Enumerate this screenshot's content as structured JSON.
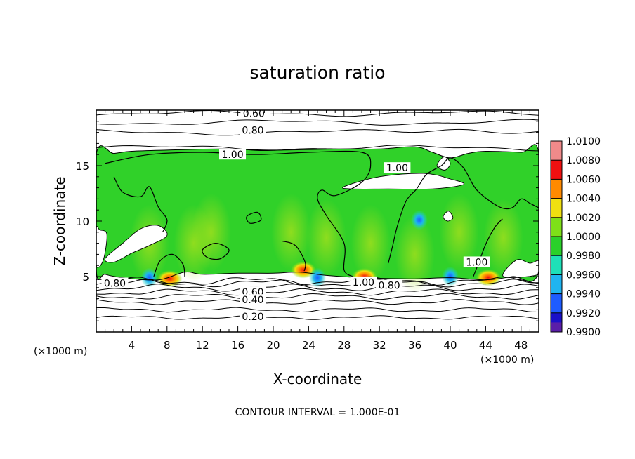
{
  "chart_data": {
    "type": "heatmap",
    "title": "saturation ratio",
    "xlabel": "X-coordinate",
    "ylabel": "Z-coordinate",
    "x_unit_left": "(×1000 m)",
    "x_unit_right": "(×1000 m)",
    "xlim": [
      0,
      50
    ],
    "ylim": [
      0,
      20
    ],
    "x_ticks": [
      4,
      8,
      12,
      16,
      20,
      24,
      28,
      32,
      36,
      40,
      44,
      48
    ],
    "y_ticks": [
      5,
      10,
      15
    ],
    "footer": "CONTOUR INTERVAL = 1.000E-01",
    "colorbar": {
      "levels": [
        "0.9900",
        "0.9920",
        "0.9940",
        "0.9960",
        "0.9980",
        "1.0000",
        "1.0020",
        "1.0040",
        "1.0060",
        "1.0080",
        "1.0100"
      ],
      "colors": [
        "#5a1ea8",
        "#1a10c8",
        "#1e5cff",
        "#1fb4f0",
        "#1ee0b8",
        "#2ad02a",
        "#7ee018",
        "#f0e010",
        "#ff8a00",
        "#f01010",
        "#f08a8a"
      ]
    },
    "contour_labels": [
      {
        "text": "0.60",
        "x": 17.8,
        "y": 19.7
      },
      {
        "text": "0.80",
        "x": 17.7,
        "y": 18.2
      },
      {
        "text": "1.00",
        "x": 15.4,
        "y": 16.0
      },
      {
        "text": "1.00",
        "x": 34.0,
        "y": 14.8
      },
      {
        "text": "1.00",
        "x": 43.0,
        "y": 6.3
      },
      {
        "text": "0.80",
        "x": 2.1,
        "y": 4.4
      },
      {
        "text": "0.60",
        "x": 17.7,
        "y": 3.6
      },
      {
        "text": "0.40",
        "x": 17.7,
        "y": 2.9
      },
      {
        "text": "0.20",
        "x": 17.7,
        "y": 1.4
      },
      {
        "text": "1.00",
        "x": 30.2,
        "y": 4.5
      },
      {
        "text": "0.80",
        "x": 33.1,
        "y": 4.2
      }
    ],
    "stable_contours": [
      {
        "level": 0.2,
        "y": 1.3
      },
      {
        "level": 0.3,
        "y": 2.0
      },
      {
        "level": 0.4,
        "y": 2.7
      },
      {
        "level": 0.5,
        "y": 3.2
      },
      {
        "level": 0.6,
        "y": 3.6
      },
      {
        "level": 0.7,
        "y": 4.0
      },
      {
        "level": 0.8,
        "y": 4.4
      },
      {
        "level": 0.9,
        "y": 4.6
      }
    ],
    "upper_contours": [
      {
        "level": 0.9,
        "y": 16.6
      },
      {
        "level": 0.8,
        "y": 18.0
      },
      {
        "level": 0.7,
        "y": 18.9
      },
      {
        "level": 0.6,
        "y": 19.7
      }
    ],
    "cloud_top_boundary": [
      [
        0,
        16.0
      ],
      [
        2,
        16.1
      ],
      [
        4,
        16.3
      ],
      [
        8,
        16.4
      ],
      [
        14,
        16.5
      ],
      [
        20,
        16.4
      ],
      [
        28,
        16.5
      ],
      [
        32,
        16.5
      ],
      [
        36,
        16.7
      ],
      [
        38,
        16.2
      ],
      [
        40,
        15.7
      ],
      [
        42,
        16.1
      ],
      [
        44,
        16.3
      ],
      [
        48,
        16.2
      ],
      [
        50,
        16.1
      ]
    ],
    "cloud_bottom_boundary": [
      [
        0,
        5.6
      ],
      [
        1,
        5.2
      ],
      [
        3,
        4.9
      ],
      [
        7,
        4.7
      ],
      [
        10,
        5.4
      ],
      [
        12,
        5.2
      ],
      [
        16,
        5.3
      ],
      [
        20,
        5.3
      ],
      [
        23,
        5.4
      ],
      [
        26,
        5.1
      ],
      [
        30,
        4.9
      ],
      [
        36,
        4.8
      ],
      [
        40,
        4.9
      ],
      [
        44,
        4.7
      ],
      [
        47,
        5.0
      ],
      [
        50,
        5.5
      ]
    ],
    "clear_regions": [
      {
        "points": [
          [
            28,
            13.1
          ],
          [
            32,
            14.0
          ],
          [
            37,
            14.3
          ],
          [
            40,
            13.8
          ],
          [
            41.5,
            13.3
          ],
          [
            38,
            12.9
          ],
          [
            33,
            12.9
          ],
          [
            29,
            12.9
          ]
        ]
      },
      {
        "points": [
          [
            1,
            6.6
          ],
          [
            3,
            8.0
          ],
          [
            5,
            9.3
          ],
          [
            7,
            9.6
          ],
          [
            8,
            8.7
          ],
          [
            6,
            7.8
          ],
          [
            4,
            7.1
          ],
          [
            2,
            6.3
          ]
        ]
      },
      {
        "points": [
          [
            0,
            6.0
          ],
          [
            0.8,
            6.5
          ],
          [
            1.2,
            8.8
          ],
          [
            0.4,
            9.2
          ],
          [
            0,
            9.3
          ]
        ]
      },
      {
        "points": [
          [
            46,
            5.0
          ],
          [
            47.5,
            6.5
          ],
          [
            49,
            6.2
          ],
          [
            50,
            6.4
          ],
          [
            50,
            5.2
          ]
        ]
      },
      {
        "points": [
          [
            38.5,
            15.0
          ],
          [
            39.3,
            15.8
          ],
          [
            40,
            15.2
          ],
          [
            39.4,
            14.6
          ]
        ]
      },
      {
        "points": [
          [
            39.2,
            10.4
          ],
          [
            39.8,
            10.9
          ],
          [
            40.3,
            10.3
          ],
          [
            39.7,
            10.0
          ]
        ]
      }
    ],
    "one_contours": [
      {
        "points": [
          [
            1,
            15.2
          ],
          [
            6,
            16.0
          ],
          [
            12,
            16.2
          ],
          [
            18,
            16.0
          ],
          [
            24,
            16.2
          ],
          [
            30,
            16.2
          ],
          [
            31,
            15.0
          ],
          [
            30,
            13.5
          ],
          [
            27,
            12.3
          ],
          [
            25.5,
            12.8
          ],
          [
            25,
            12.0
          ],
          [
            26,
            10.5
          ],
          [
            28,
            8.0
          ],
          [
            28,
            5.6
          ],
          [
            29,
            5.0
          ]
        ]
      },
      {
        "points": [
          [
            2,
            14.0
          ],
          [
            3,
            12.6
          ],
          [
            5,
            12.2
          ],
          [
            6,
            13.1
          ],
          [
            7,
            11.3
          ],
          [
            8,
            10.1
          ],
          [
            7.5,
            9.0
          ]
        ]
      },
      {
        "points": [
          [
            33,
            6.2
          ],
          [
            33.5,
            7.8
          ],
          [
            34,
            9.5
          ],
          [
            35,
            11.8
          ],
          [
            36.2,
            12.9
          ],
          [
            37.3,
            14.2
          ],
          [
            39,
            15.0
          ],
          [
            40,
            15.7
          ],
          [
            41.5,
            14.8
          ],
          [
            43,
            12.8
          ],
          [
            45.5,
            11.3
          ],
          [
            47,
            11.2
          ],
          [
            48,
            12.0
          ],
          [
            49,
            11.6
          ],
          [
            50,
            11.2
          ]
        ]
      },
      {
        "points": [
          [
            42.6,
            5.0
          ],
          [
            43.2,
            6.2
          ],
          [
            44,
            7.9
          ],
          [
            45,
            9.4
          ],
          [
            45.9,
            10.2
          ]
        ]
      },
      {
        "points": [
          [
            12,
            7.4
          ],
          [
            13.5,
            8.0
          ],
          [
            15,
            7.4
          ],
          [
            14,
            6.6
          ],
          [
            12.6,
            6.7
          ],
          [
            12,
            7.4
          ]
        ]
      },
      {
        "points": [
          [
            6.5,
            5.0
          ],
          [
            7.2,
            6.4
          ],
          [
            8.6,
            7.0
          ],
          [
            9.8,
            6.1
          ],
          [
            10,
            5.0
          ]
        ]
      },
      {
        "points": [
          [
            21,
            8.2
          ],
          [
            22.5,
            7.8
          ],
          [
            23.6,
            6.3
          ],
          [
            23.5,
            5.5
          ]
        ]
      },
      {
        "points": [
          [
            17,
            10.4
          ],
          [
            18.2,
            10.8
          ],
          [
            18.6,
            10.1
          ],
          [
            17.4,
            9.8
          ],
          [
            17,
            10.4
          ]
        ]
      }
    ],
    "hotspots": [
      {
        "x": 8.3,
        "y": 4.8,
        "type": "warm"
      },
      {
        "x": 44.3,
        "y": 4.9,
        "type": "warm"
      },
      {
        "x": 23.4,
        "y": 5.6,
        "type": "warm"
      },
      {
        "x": 30.3,
        "y": 5.0,
        "type": "warm"
      },
      {
        "x": 6.0,
        "y": 4.9,
        "type": "cool"
      },
      {
        "x": 25.0,
        "y": 4.9,
        "type": "cool"
      },
      {
        "x": 40.0,
        "y": 5.0,
        "type": "cool"
      },
      {
        "x": 36.5,
        "y": 10.1,
        "type": "cool"
      }
    ]
  }
}
